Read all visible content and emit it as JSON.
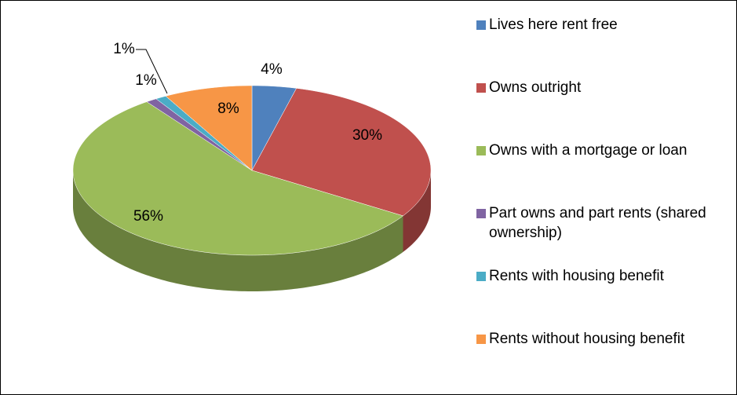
{
  "chart_data": {
    "type": "pie",
    "categories": [
      "Lives here rent free",
      "Owns outright",
      "Owns with a mortgage or loan",
      "Part owns and part rents (shared ownership)",
      "Rents with housing benefit",
      "Rents without housing benefit"
    ],
    "values": [
      4,
      30,
      56,
      1,
      1,
      8
    ],
    "value_labels": [
      "4%",
      "30%",
      "56%",
      "1%",
      "1%",
      "8%"
    ],
    "colors": [
      "#4f81bd",
      "#c0504d",
      "#9bbb59",
      "#8064a2",
      "#4bacc6",
      "#f79646"
    ],
    "legend": "right"
  }
}
